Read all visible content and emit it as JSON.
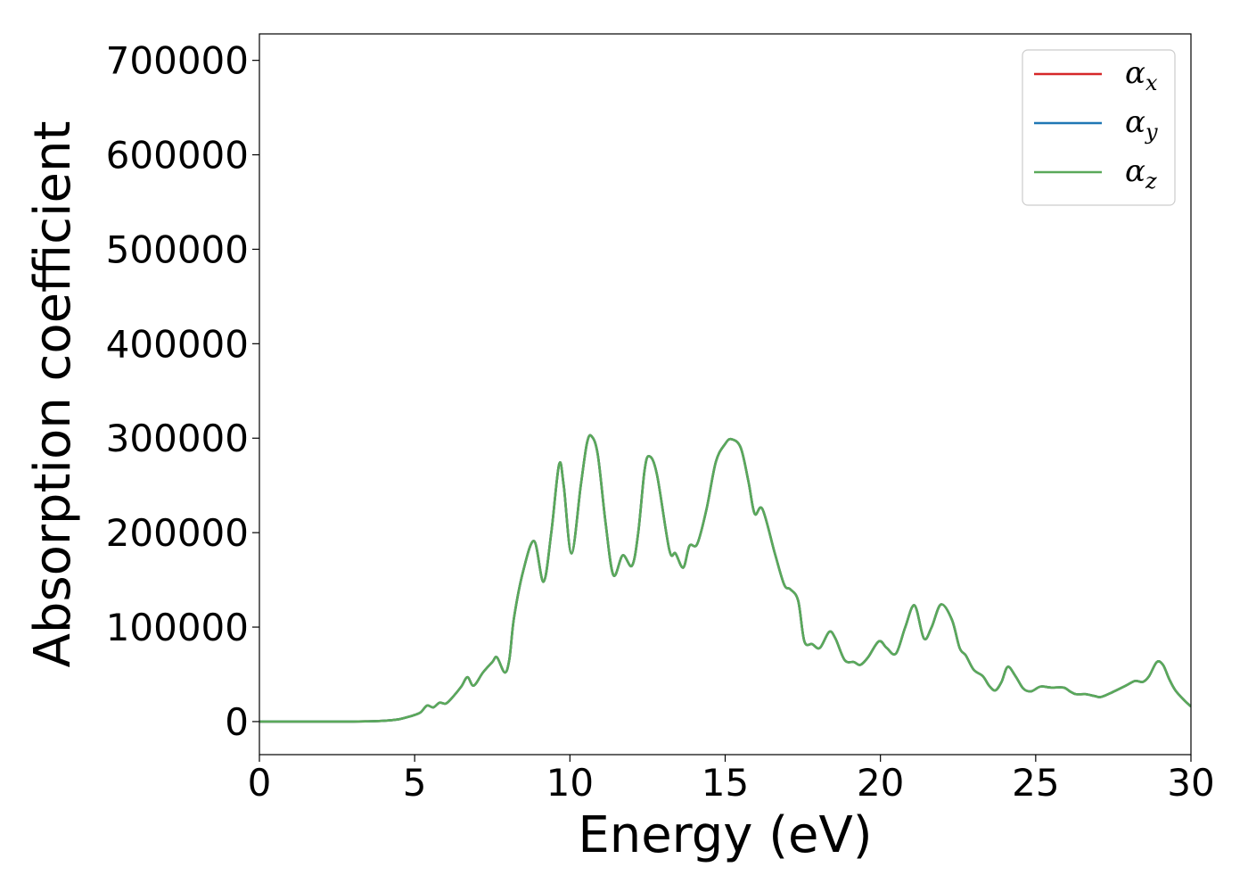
{
  "chart_data": {
    "type": "line",
    "title": "",
    "xlabel": "Energy (eV)",
    "ylabel": "Absorption coefficient",
    "xlim": [
      0,
      30
    ],
    "ylim": [
      -35000,
      728000
    ],
    "x_ticks": [
      0,
      5,
      10,
      15,
      20,
      25,
      30
    ],
    "y_ticks": [
      0,
      100000,
      200000,
      300000,
      400000,
      500000,
      600000,
      700000
    ],
    "grid": false,
    "legend": "top-right",
    "series": [
      {
        "name": "α",
        "subscript": "x",
        "color": "#d62728"
      },
      {
        "name": "α",
        "subscript": "y",
        "color": "#1f77b4"
      },
      {
        "name": "α",
        "subscript": "z",
        "color": "#5aa95a"
      }
    ],
    "points": [
      [
        0,
        0
      ],
      [
        1,
        0
      ],
      [
        2,
        0
      ],
      [
        3,
        0
      ],
      [
        3.5,
        300
      ],
      [
        4,
        800
      ],
      [
        4.5,
        2500
      ],
      [
        4.8,
        5000
      ],
      [
        5.0,
        7000
      ],
      [
        5.2,
        10000
      ],
      [
        5.4,
        17000
      ],
      [
        5.6,
        15000
      ],
      [
        5.8,
        20000
      ],
      [
        6.0,
        19000
      ],
      [
        6.2,
        25000
      ],
      [
        6.5,
        37000
      ],
      [
        6.7,
        47000
      ],
      [
        6.9,
        38000
      ],
      [
        7.2,
        52000
      ],
      [
        7.5,
        63000
      ],
      [
        7.65,
        68000
      ],
      [
        7.9,
        52000
      ],
      [
        8.05,
        66000
      ],
      [
        8.2,
        110000
      ],
      [
        8.5,
        160000
      ],
      [
        8.85,
        191000
      ],
      [
        9.15,
        148000
      ],
      [
        9.4,
        200000
      ],
      [
        9.65,
        272000
      ],
      [
        9.8,
        250000
      ],
      [
        10.05,
        178000
      ],
      [
        10.35,
        250000
      ],
      [
        10.55,
        295000
      ],
      [
        10.7,
        302000
      ],
      [
        10.9,
        282000
      ],
      [
        11.15,
        210000
      ],
      [
        11.4,
        155000
      ],
      [
        11.7,
        176000
      ],
      [
        12.0,
        165000
      ],
      [
        12.2,
        200000
      ],
      [
        12.4,
        265000
      ],
      [
        12.55,
        281000
      ],
      [
        12.8,
        262000
      ],
      [
        13.2,
        182000
      ],
      [
        13.4,
        178000
      ],
      [
        13.65,
        163000
      ],
      [
        13.85,
        186000
      ],
      [
        14.1,
        188000
      ],
      [
        14.4,
        225000
      ],
      [
        14.7,
        275000
      ],
      [
        15.0,
        294000
      ],
      [
        15.2,
        299000
      ],
      [
        15.5,
        290000
      ],
      [
        15.75,
        254000
      ],
      [
        15.95,
        220000
      ],
      [
        16.2,
        225000
      ],
      [
        16.6,
        178000
      ],
      [
        16.9,
        145000
      ],
      [
        17.1,
        140000
      ],
      [
        17.35,
        128000
      ],
      [
        17.55,
        85000
      ],
      [
        17.8,
        82000
      ],
      [
        18.05,
        78000
      ],
      [
        18.35,
        95000
      ],
      [
        18.55,
        88000
      ],
      [
        18.85,
        65000
      ],
      [
        19.15,
        63000
      ],
      [
        19.35,
        60000
      ],
      [
        19.6,
        68000
      ],
      [
        19.95,
        85000
      ],
      [
        20.2,
        78000
      ],
      [
        20.5,
        72000
      ],
      [
        20.8,
        100000
      ],
      [
        21.1,
        123000
      ],
      [
        21.4,
        88000
      ],
      [
        21.65,
        100000
      ],
      [
        21.95,
        124000
      ],
      [
        22.3,
        108000
      ],
      [
        22.55,
        78000
      ],
      [
        22.75,
        70000
      ],
      [
        23.0,
        55000
      ],
      [
        23.3,
        48000
      ],
      [
        23.5,
        38000
      ],
      [
        23.7,
        33000
      ],
      [
        23.9,
        42000
      ],
      [
        24.1,
        58000
      ],
      [
        24.35,
        48000
      ],
      [
        24.6,
        35000
      ],
      [
        24.85,
        32000
      ],
      [
        25.15,
        37000
      ],
      [
        25.5,
        36000
      ],
      [
        25.9,
        36000
      ],
      [
        26.1,
        32000
      ],
      [
        26.3,
        29000
      ],
      [
        26.6,
        29000
      ],
      [
        26.9,
        27000
      ],
      [
        27.1,
        26000
      ],
      [
        27.4,
        30000
      ],
      [
        27.9,
        38000
      ],
      [
        28.2,
        43000
      ],
      [
        28.45,
        42000
      ],
      [
        28.65,
        48000
      ],
      [
        28.9,
        63000
      ],
      [
        29.1,
        60000
      ],
      [
        29.3,
        45000
      ],
      [
        29.5,
        33000
      ],
      [
        29.8,
        22000
      ],
      [
        30.0,
        16000
      ]
    ]
  }
}
